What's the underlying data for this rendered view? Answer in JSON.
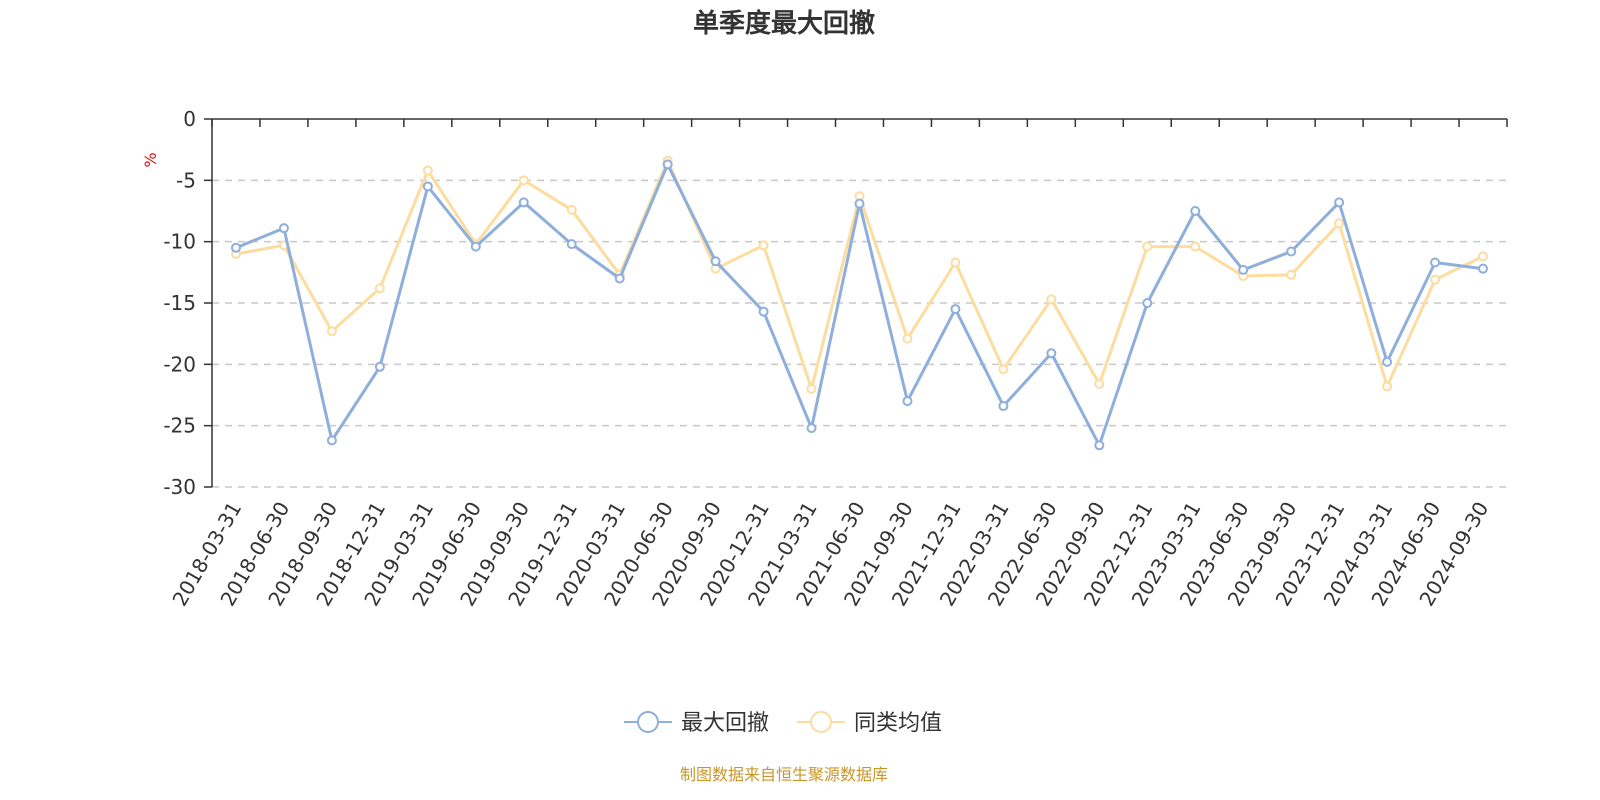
{
  "chart_data": {
    "type": "line",
    "title": "单季度最大回撤",
    "ylabel": "%",
    "ylim": [
      -30,
      0
    ],
    "yticks": [
      0,
      -5,
      -10,
      -15,
      -20,
      -25,
      -30
    ],
    "grid": true,
    "legend_position": "bottom-center",
    "categories": [
      "2018-03-31",
      "2018-06-30",
      "2018-09-30",
      "2018-12-31",
      "2019-03-31",
      "2019-06-30",
      "2019-09-30",
      "2019-12-31",
      "2020-03-31",
      "2020-06-30",
      "2020-09-30",
      "2020-12-31",
      "2021-03-31",
      "2021-06-30",
      "2021-09-30",
      "2021-12-31",
      "2022-03-31",
      "2022-06-30",
      "2022-09-30",
      "2022-12-31",
      "2023-03-31",
      "2023-06-30",
      "2023-09-30",
      "2023-12-31",
      "2024-03-31",
      "2024-06-30",
      "2024-09-30"
    ],
    "series": [
      {
        "name": "最大回撤",
        "color": "#8eaedb",
        "values": [
          -10.5,
          -8.9,
          -26.2,
          -20.2,
          -5.5,
          -10.4,
          -6.8,
          -10.2,
          -13.0,
          -3.7,
          -11.6,
          -15.7,
          -25.2,
          -6.9,
          -23.0,
          -15.5,
          -23.4,
          -19.1,
          -26.6,
          -15.0,
          -7.5,
          -12.3,
          -10.8,
          -6.8,
          -19.8,
          -11.7,
          -12.2
        ]
      },
      {
        "name": "同类均值",
        "color": "#fddc9f",
        "values": [
          -11.0,
          -10.3,
          -17.3,
          -13.8,
          -4.2,
          -10.2,
          -5.0,
          -7.4,
          -12.7,
          -3.4,
          -12.2,
          -10.3,
          -22.0,
          -6.3,
          -17.9,
          -11.7,
          -20.4,
          -14.7,
          -21.6,
          -10.4,
          -10.4,
          -12.8,
          -12.7,
          -8.5,
          -21.8,
          -13.1,
          -11.2
        ]
      }
    ]
  },
  "source_note": "制图数据来自恒生聚源数据库"
}
